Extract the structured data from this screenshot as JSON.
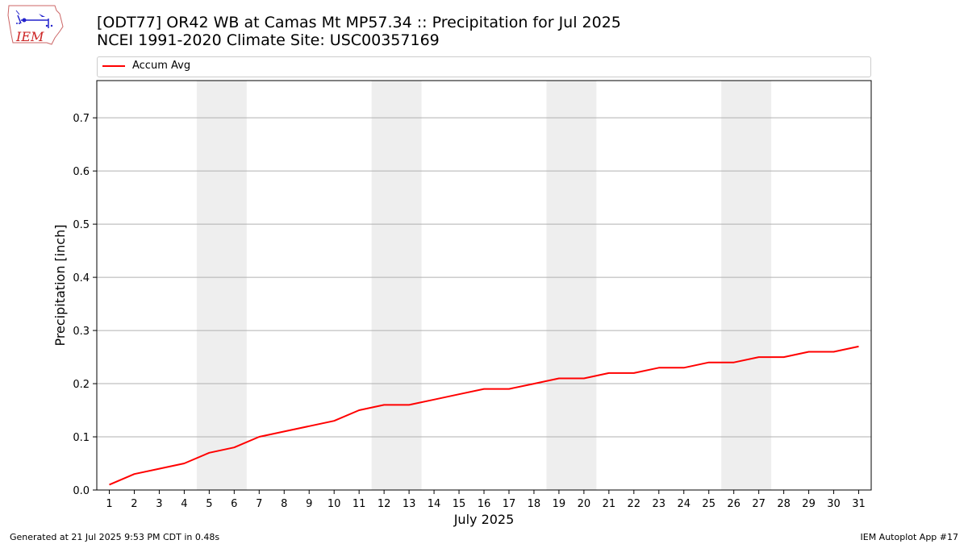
{
  "header": {
    "title": "[ODT77] OR42 WB at Camas Mt MP57.34  :: Precipitation for Jul 2025",
    "subtitle": "NCEI 1991-2020 Climate Site: USC00357169"
  },
  "logo": {
    "text": "IEM",
    "icon": "iem-logo-icon"
  },
  "footer": {
    "generated": "Generated at 21 Jul 2025 9:53 PM CDT in 0.48s",
    "app": "IEM Autoplot App #17"
  },
  "chart_data": {
    "type": "line",
    "title": "[ODT77] OR42 WB at Camas Mt MP57.34  :: Precipitation for Jul 2025",
    "xlabel": "July 2025",
    "ylabel": "Precipitation [inch]",
    "x": [
      1,
      2,
      3,
      4,
      5,
      6,
      7,
      8,
      9,
      10,
      11,
      12,
      13,
      14,
      15,
      16,
      17,
      18,
      19,
      20,
      21,
      22,
      23,
      24,
      25,
      26,
      27,
      28,
      29,
      30,
      31
    ],
    "series": [
      {
        "name": "Accum Avg",
        "color": "#ff0000",
        "values": [
          0.01,
          0.03,
          0.04,
          0.05,
          0.07,
          0.08,
          0.1,
          0.11,
          0.12,
          0.13,
          0.15,
          0.16,
          0.16,
          0.17,
          0.18,
          0.19,
          0.19,
          0.2,
          0.21,
          0.21,
          0.22,
          0.22,
          0.23,
          0.23,
          0.24,
          0.24,
          0.25,
          0.25,
          0.26,
          0.26,
          0.27
        ]
      }
    ],
    "xlim": [
      0.5,
      31.5
    ],
    "ylim": [
      0,
      0.77
    ],
    "yticks": [
      0.0,
      0.1,
      0.2,
      0.3,
      0.4,
      0.5,
      0.6,
      0.7
    ],
    "ytick_labels": [
      "0.0",
      "0.1",
      "0.2",
      "0.3",
      "0.4",
      "0.5",
      "0.6",
      "0.7"
    ],
    "grid": "horizontal",
    "legend": "top",
    "weekend_shading": [
      [
        5,
        6
      ],
      [
        12,
        13
      ],
      [
        19,
        20
      ],
      [
        26,
        27
      ]
    ],
    "shade_color": "#eeeeee"
  }
}
